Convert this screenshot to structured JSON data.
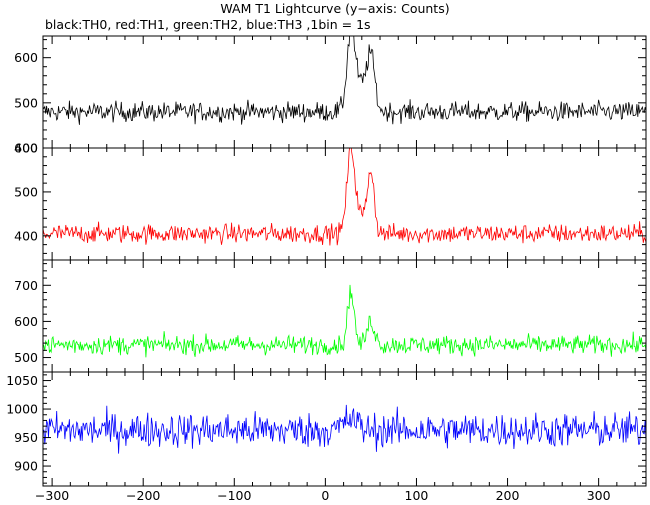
{
  "title": "WAM T1 Lightcurve (y−axis: Counts)",
  "subtitle": "black:TH0, red:TH1, green:TH2, blue:TH3 ,1bin = 1s",
  "chart_data": [
    {
      "type": "line",
      "series": [
        {
          "name": "TH0",
          "color": "#000000"
        }
      ],
      "xlim": [
        -310,
        352
      ],
      "ylim": [
        400,
        648
      ],
      "yticks": [
        400,
        500,
        600
      ],
      "baseline": 480,
      "noise": 20,
      "bursts": [
        {
          "x": 28,
          "h": 155,
          "w": 6
        },
        {
          "x": 50,
          "h": 110,
          "w": 6
        },
        {
          "x": 38,
          "h": 60,
          "w": 12
        }
      ]
    },
    {
      "type": "line",
      "series": [
        {
          "name": "TH1",
          "color": "#ff0000"
        }
      ],
      "xlim": [
        -310,
        352
      ],
      "ylim": [
        345,
        600
      ],
      "yticks": [
        400,
        500,
        600
      ],
      "baseline": 405,
      "noise": 20,
      "bursts": [
        {
          "x": 28,
          "h": 175,
          "w": 6
        },
        {
          "x": 50,
          "h": 135,
          "w": 5
        },
        {
          "x": 38,
          "h": 40,
          "w": 12
        }
      ]
    },
    {
      "type": "line",
      "series": [
        {
          "name": "TH2",
          "color": "#00ff00"
        }
      ],
      "xlim": [
        -310,
        352
      ],
      "ylim": [
        460,
        770
      ],
      "yticks": [
        500,
        600,
        700
      ],
      "baseline": 535,
      "noise": 24,
      "bursts": [
        {
          "x": 28,
          "h": 150,
          "w": 5
        },
        {
          "x": 50,
          "h": 65,
          "w": 6
        }
      ]
    },
    {
      "type": "line",
      "series": [
        {
          "name": "TH3",
          "color": "#0000ff"
        }
      ],
      "xlim": [
        -310,
        352
      ],
      "ylim": [
        865,
        1065
      ],
      "yticks": [
        900,
        950,
        1000,
        1050
      ],
      "baseline": 963,
      "noise": 28,
      "bursts": [
        {
          "x": 28,
          "h": 20,
          "w": 10
        }
      ]
    }
  ],
  "x_axis": {
    "ticks": [
      -300,
      -200,
      -100,
      0,
      100,
      200,
      300
    ]
  }
}
